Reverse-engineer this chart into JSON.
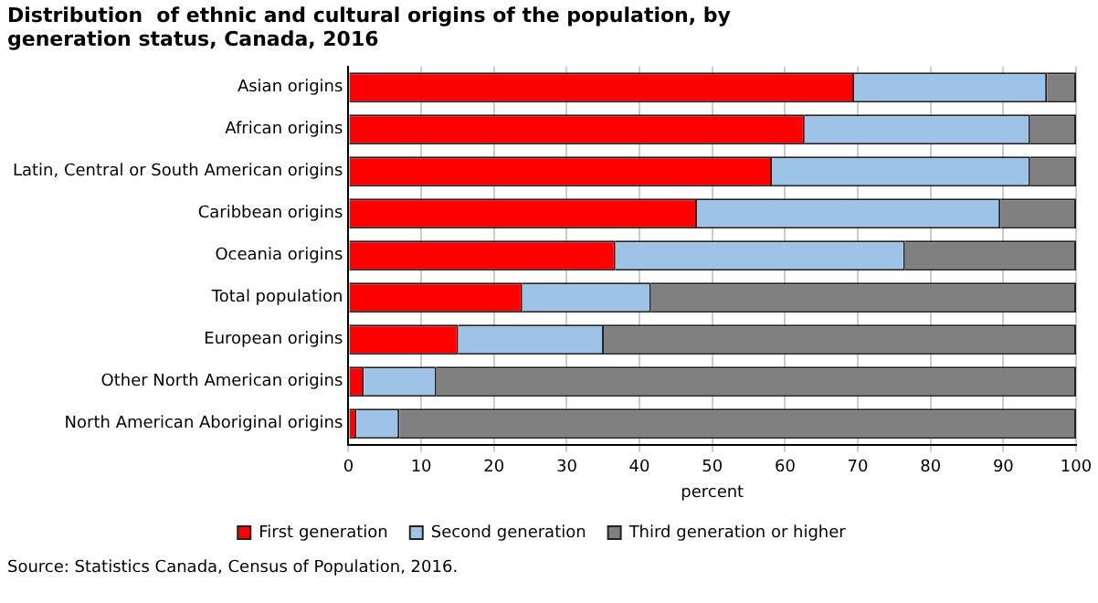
{
  "chart_data": {
    "type": "bar",
    "orientation": "horizontal",
    "stacked": true,
    "title": "Distribution  of ethnic and cultural origins of the population, by generation status, Canada, 2016",
    "xlabel": "percent",
    "categories": [
      "Asian origins",
      "African origins",
      "Latin, Central or South American origins",
      "Caribbean origins",
      "Oceania origins",
      "Total population",
      "European origins",
      "Other North American origins",
      "North American Aboriginal origins"
    ],
    "series": [
      {
        "name": "First generation",
        "color": "#ff0000",
        "values": [
          69.5,
          62.7,
          58.2,
          47.9,
          36.7,
          23.9,
          15.1,
          2.1,
          1.1
        ]
      },
      {
        "name": "Second generation",
        "color": "#9dc3e6",
        "values": [
          26.5,
          31.0,
          35.5,
          41.7,
          39.8,
          17.7,
          20.0,
          10.0,
          5.9
        ]
      },
      {
        "name": "Third generation or higher",
        "color": "#808080",
        "values": [
          4.0,
          6.3,
          6.3,
          10.4,
          23.5,
          58.4,
          64.9,
          87.9,
          93.0
        ]
      }
    ],
    "xlim": [
      0,
      100
    ],
    "xticks": [
      0,
      10,
      20,
      30,
      40,
      50,
      60,
      70,
      80,
      90,
      100
    ],
    "grid": "x",
    "legend": "bottom",
    "annotations": [
      "Source: Statistics Canada, Census of Population, 2016."
    ]
  }
}
